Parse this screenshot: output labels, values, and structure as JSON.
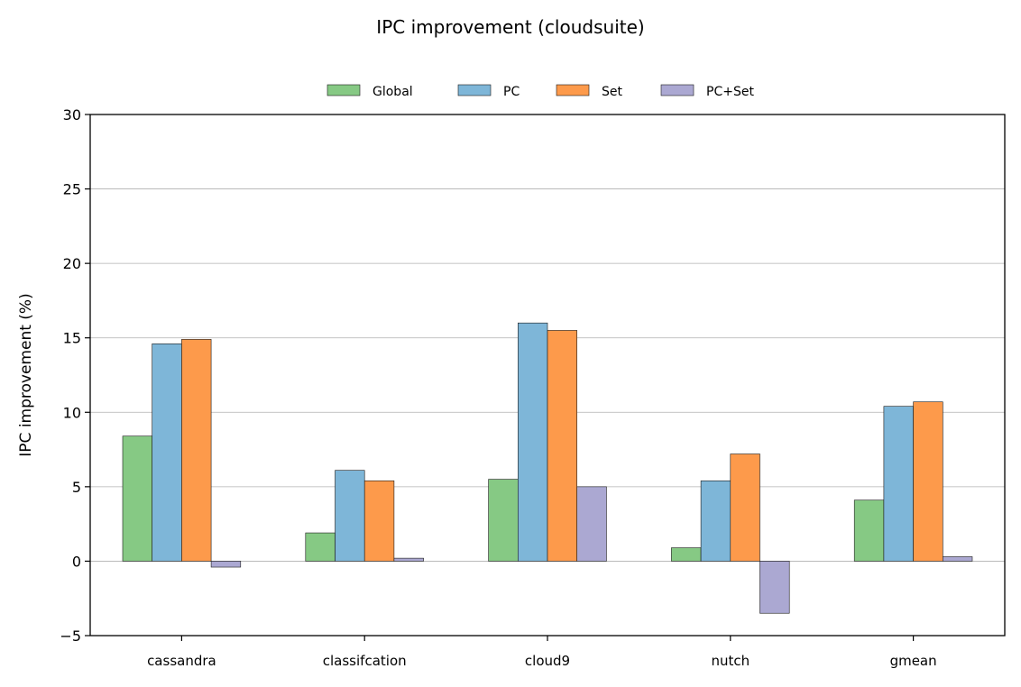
{
  "chart_data": {
    "type": "bar",
    "title": "IPC improvement (cloudsuite)",
    "xlabel": "",
    "ylabel": "IPC improvement (%)",
    "ylim": [
      -5,
      30
    ],
    "yticks": [
      -5,
      0,
      5,
      10,
      15,
      20,
      25,
      30
    ],
    "ytick_labels": [
      "−5",
      "0",
      "5",
      "10",
      "15",
      "20",
      "25",
      "30"
    ],
    "grid": "horizontal",
    "legend_position": "top-center",
    "categories": [
      "cassandra",
      "classifcation",
      "cloud9",
      "nutch",
      "gmean"
    ],
    "series": [
      {
        "name": "Global",
        "color": "#86c984",
        "values": [
          8.4,
          1.9,
          5.5,
          0.9,
          4.1
        ]
      },
      {
        "name": "PC",
        "color": "#7eb6d8",
        "values": [
          14.6,
          6.1,
          16.0,
          5.4,
          10.4
        ]
      },
      {
        "name": "Set",
        "color": "#fd9a4b",
        "values": [
          14.9,
          5.4,
          15.5,
          7.2,
          10.7
        ]
      },
      {
        "name": "PC+Set",
        "color": "#aba8d2",
        "values": [
          -0.4,
          0.2,
          5.0,
          -3.5,
          0.3
        ]
      }
    ]
  }
}
